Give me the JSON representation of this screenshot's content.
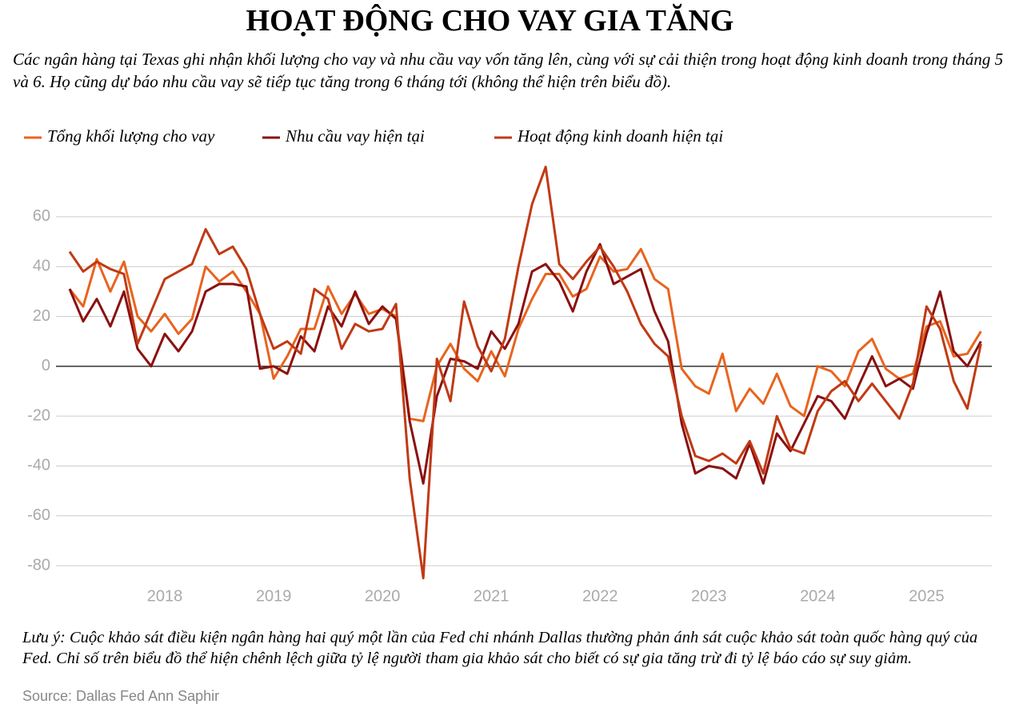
{
  "chart_data": {
    "type": "line",
    "title": "HOẠT ĐỘNG CHO VAY GIA TĂNG",
    "subtitle": "Các ngân hàng tại Texas ghi nhận khối lượng cho vay và nhu cầu vay vốn tăng lên, cùng với sự cải thiện trong hoạt động kinh doanh trong tháng 5 và 6. Họ cũng dự báo nhu cầu vay sẽ tiếp tục tăng trong 6 tháng tới (không thể hiện trên biểu đồ).",
    "note": "Lưu ý: Cuộc khảo sát điều kiện ngân hàng hai quý một lần của Fed chi nhánh Dallas thường phản ánh sát cuộc khảo sát toàn quốc hàng quý của Fed. Chỉ số trên biểu đồ thể hiện chênh lệch giữa tỷ lệ người tham gia khảo sát cho biết có sự gia tăng trừ đi tỷ lệ báo cáo sự suy giảm.",
    "source": "Source: Dallas Fed  Ann Saphir",
    "x": [
      2017.125,
      2017.25,
      2017.375,
      2017.5,
      2017.625,
      2017.75,
      2017.875,
      2018,
      2018.125,
      2018.25,
      2018.375,
      2018.5,
      2018.625,
      2018.75,
      2018.875,
      2019,
      2019.125,
      2019.25,
      2019.375,
      2019.5,
      2019.625,
      2019.75,
      2019.875,
      2020,
      2020.125,
      2020.25,
      2020.375,
      2020.5,
      2020.625,
      2020.75,
      2020.875,
      2021,
      2021.125,
      2021.25,
      2021.375,
      2021.5,
      2021.625,
      2021.75,
      2021.875,
      2022,
      2022.125,
      2022.25,
      2022.375,
      2022.5,
      2022.625,
      2022.75,
      2022.875,
      2023,
      2023.125,
      2023.25,
      2023.375,
      2023.5,
      2023.625,
      2023.75,
      2023.875,
      2024,
      2024.125,
      2024.25,
      2024.375,
      2024.5,
      2024.625,
      2024.75,
      2024.875,
      2025,
      2025.125,
      2025.25,
      2025.375,
      2025.5
    ],
    "series": [
      {
        "name": "Tổng khối lượng cho vay",
        "color": "#e8641e",
        "values": [
          31,
          24,
          43,
          30,
          42,
          20,
          14,
          21,
          13,
          19,
          40,
          34,
          38,
          30,
          21,
          -5,
          4,
          15,
          15,
          32,
          21,
          29,
          21,
          23,
          20,
          -21,
          -22,
          0,
          9,
          -1,
          -6,
          6,
          -4,
          15,
          27,
          37,
          37,
          28,
          31,
          44,
          38,
          39,
          47,
          35,
          31,
          -1,
          -8,
          -11,
          5,
          -18,
          -9,
          -15,
          -3,
          -16,
          -20,
          0,
          -2,
          -8,
          6,
          11,
          -1,
          -5,
          -3,
          16,
          18,
          4,
          5,
          14
        ]
      },
      {
        "name": "Nhu cầu vay hiện tại",
        "color": "#8b1010",
        "values": [
          31,
          18,
          27,
          16,
          30,
          7,
          0,
          13,
          6,
          14,
          30,
          33,
          33,
          32,
          -1,
          0,
          -3,
          12,
          6,
          24,
          16,
          30,
          17,
          24,
          19,
          -22,
          -47,
          -12,
          3,
          2,
          -1,
          14,
          7,
          17,
          38,
          41,
          34,
          22,
          38,
          49,
          33,
          36,
          39,
          22,
          10,
          -23,
          -43,
          -40,
          -41,
          -45,
          -31,
          -47,
          -27,
          -34,
          -23,
          -12,
          -14,
          -21,
          -8,
          4,
          -8,
          -5,
          -9,
          13,
          30,
          6,
          0,
          10
        ]
      },
      {
        "name": "Hoạt động kinh doanh hiện tại",
        "color": "#c03a14",
        "values": [
          46,
          38,
          42,
          39,
          37,
          9,
          22,
          35,
          38,
          41,
          55,
          45,
          48,
          39,
          21,
          7,
          10,
          5,
          31,
          27,
          7,
          17,
          14,
          15,
          25,
          -45,
          -85,
          3,
          -14,
          26,
          8,
          -2,
          11,
          40,
          65,
          80,
          41,
          35,
          42,
          48,
          40,
          30,
          17,
          9,
          4,
          -20,
          -36,
          -38,
          -35,
          -39,
          -30,
          -43,
          -20,
          -33,
          -35,
          -18,
          -10,
          -6,
          -14,
          -7,
          -14,
          -21,
          -7,
          24,
          15,
          -6,
          -17,
          9
        ]
      }
    ],
    "xlim": [
      2017.0,
      2025.6
    ],
    "xticks": [
      2018,
      2019,
      2020,
      2021,
      2022,
      2023,
      2024,
      2025
    ],
    "ylim": [
      -88,
      85
    ],
    "yticks": [
      -80,
      -60,
      -40,
      -20,
      0,
      20,
      40,
      60
    ],
    "grid": true
  }
}
